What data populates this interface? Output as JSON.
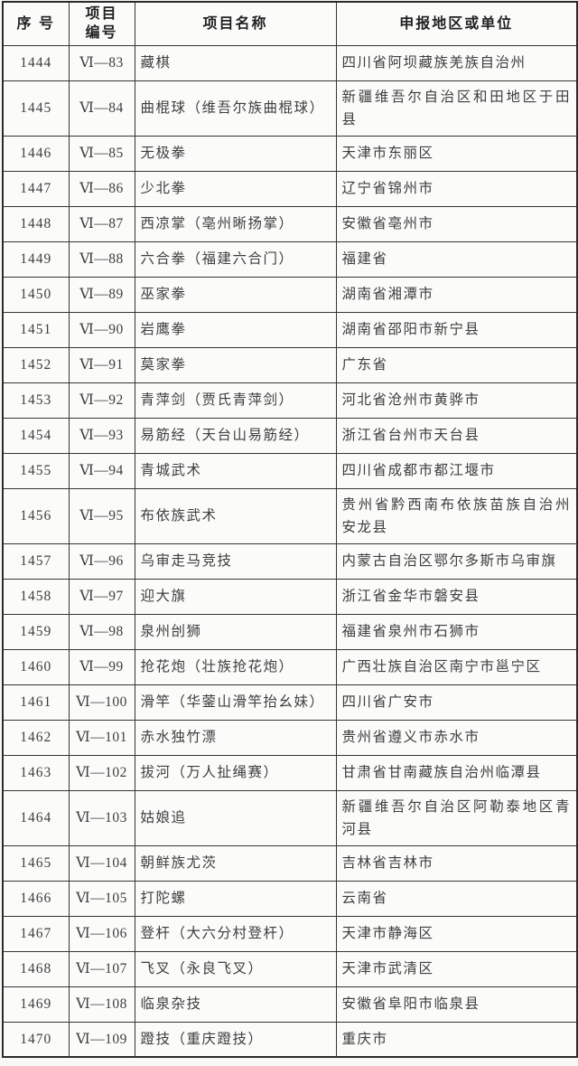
{
  "document": {
    "type": "national-intangible-cultural-heritage-list-table",
    "category_code_prefix": "Ⅵ"
  },
  "colors": {
    "page_background": "#f8f8f7",
    "table_background": "#fbfbfa",
    "border": "#353535",
    "header_text": "#222222",
    "body_text": "#3e3e3e"
  },
  "table": {
    "headers": [
      {
        "label": "序 号"
      },
      {
        "label": "项目\n编号"
      },
      {
        "label": "项目名称"
      },
      {
        "label": "申报地区或单位"
      }
    ],
    "rows": [
      {
        "serial": "1444",
        "code": "Ⅵ—83",
        "name": "藏棋",
        "region": "四川省阿坝藏族羌族自治州"
      },
      {
        "serial": "1445",
        "code": "Ⅵ—84",
        "name": "曲棍球（维吾尔族曲棍球）",
        "region": "新疆维吾尔自治区和田地区于田县"
      },
      {
        "serial": "1446",
        "code": "Ⅵ—85",
        "name": "无极拳",
        "region": "天津市东丽区"
      },
      {
        "serial": "1447",
        "code": "Ⅵ—86",
        "name": "少北拳",
        "region": "辽宁省锦州市"
      },
      {
        "serial": "1448",
        "code": "Ⅵ—87",
        "name": "西凉掌（亳州晰扬掌）",
        "region": "安徽省亳州市"
      },
      {
        "serial": "1449",
        "code": "Ⅵ—88",
        "name": "六合拳（福建六合门）",
        "region": "福建省"
      },
      {
        "serial": "1450",
        "code": "Ⅵ—89",
        "name": "巫家拳",
        "region": "湖南省湘潭市"
      },
      {
        "serial": "1451",
        "code": "Ⅵ—90",
        "name": "岩鹰拳",
        "region": "湖南省邵阳市新宁县"
      },
      {
        "serial": "1452",
        "code": "Ⅵ—91",
        "name": "莫家拳",
        "region": "广东省"
      },
      {
        "serial": "1453",
        "code": "Ⅵ—92",
        "name": "青萍剑（贾氏青萍剑）",
        "region": "河北省沧州市黄骅市"
      },
      {
        "serial": "1454",
        "code": "Ⅵ—93",
        "name": "易筋经（天台山易筋经）",
        "region": "浙江省台州市天台县"
      },
      {
        "serial": "1455",
        "code": "Ⅵ—94",
        "name": "青城武术",
        "region": "四川省成都市都江堰市"
      },
      {
        "serial": "1456",
        "code": "Ⅵ—95",
        "name": "布依族武术",
        "region": "贵州省黔西南布依族苗族自治州安龙县"
      },
      {
        "serial": "1457",
        "code": "Ⅵ—96",
        "name": "乌审走马竞技",
        "region": "内蒙古自治区鄂尔多斯市乌审旗"
      },
      {
        "serial": "1458",
        "code": "Ⅵ—97",
        "name": "迎大旗",
        "region": "浙江省金华市磐安县"
      },
      {
        "serial": "1459",
        "code": "Ⅵ—98",
        "name": "泉州刣狮",
        "region": "福建省泉州市石狮市"
      },
      {
        "serial": "1460",
        "code": "Ⅵ—99",
        "name": "抢花炮（壮族抢花炮）",
        "region": "广西壮族自治区南宁市邕宁区"
      },
      {
        "serial": "1461",
        "code": "Ⅵ—100",
        "name": "滑竿（华蓥山滑竿抬幺妹）",
        "region": "四川省广安市"
      },
      {
        "serial": "1462",
        "code": "Ⅵ—101",
        "name": "赤水独竹漂",
        "region": "贵州省遵义市赤水市"
      },
      {
        "serial": "1463",
        "code": "Ⅵ—102",
        "name": "拔河（万人扯绳赛）",
        "region": "甘肃省甘南藏族自治州临潭县"
      },
      {
        "serial": "1464",
        "code": "Ⅵ—103",
        "name": "姑娘追",
        "region": "新疆维吾尔自治区阿勒泰地区青河县"
      },
      {
        "serial": "1465",
        "code": "Ⅵ—104",
        "name": "朝鲜族尤茨",
        "region": "吉林省吉林市"
      },
      {
        "serial": "1466",
        "code": "Ⅵ—105",
        "name": "打陀螺",
        "region": "云南省"
      },
      {
        "serial": "1467",
        "code": "Ⅵ—106",
        "name": "登杆（大六分村登杆）",
        "region": "天津市静海区"
      },
      {
        "serial": "1468",
        "code": "Ⅵ—107",
        "name": "飞叉（永良飞叉）",
        "region": "天津市武清区"
      },
      {
        "serial": "1469",
        "code": "Ⅵ—108",
        "name": "临泉杂技",
        "region": "安徽省阜阳市临泉县"
      },
      {
        "serial": "1470",
        "code": "Ⅵ—109",
        "name": "蹬技（重庆蹬技）",
        "region": "重庆市"
      }
    ]
  }
}
